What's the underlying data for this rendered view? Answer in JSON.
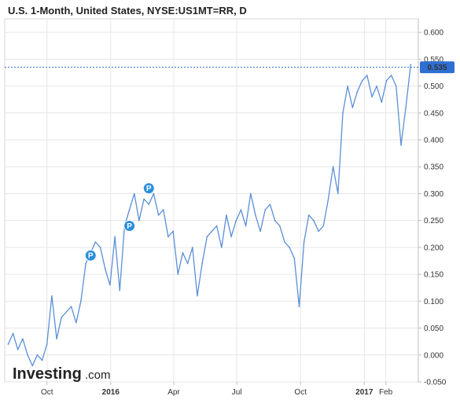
{
  "chart_data": {
    "type": "line",
    "title": "U.S. 1-Month, United States, NYSE:US1MT=RR, D",
    "xlabel": "",
    "ylabel": "",
    "ylim": [
      -0.05,
      0.625
    ],
    "y_ticks": [
      "0.600",
      "0.550",
      "0.500",
      "0.450",
      "0.400",
      "0.350",
      "0.300",
      "0.250",
      "0.200",
      "0.150",
      "0.100",
      "0.050",
      "0.000",
      "-0.050"
    ],
    "x_ticks": [
      {
        "label": "Oct",
        "x": "2015-10",
        "bold": false
      },
      {
        "label": "2016",
        "x": "2016-01",
        "bold": true
      },
      {
        "label": "Apr",
        "x": "2016-04",
        "bold": false
      },
      {
        "label": "Jul",
        "x": "2016-07",
        "bold": false
      },
      {
        "label": "Oct",
        "x": "2016-10",
        "bold": false
      },
      {
        "label": "2017",
        "x": "2017-01",
        "bold": true
      },
      {
        "label": "Feb",
        "x": "2017-02",
        "bold": false
      }
    ],
    "current_value": "0.535",
    "grid": true,
    "series": [
      {
        "color": "#5b8fd6",
        "x": [
          "2015-08-06",
          "2015-08-13",
          "2015-08-20",
          "2015-08-27",
          "2015-09-03",
          "2015-09-10",
          "2015-09-17",
          "2015-09-24",
          "2015-10-01",
          "2015-10-08",
          "2015-10-15",
          "2015-10-22",
          "2015-10-29",
          "2015-11-05",
          "2015-11-12",
          "2015-11-19",
          "2015-11-26",
          "2015-12-03",
          "2015-12-10",
          "2015-12-17",
          "2015-12-24",
          "2015-12-31",
          "2016-01-07",
          "2016-01-14",
          "2016-01-21",
          "2016-01-28",
          "2016-02-04",
          "2016-02-11",
          "2016-02-18",
          "2016-02-25",
          "2016-03-03",
          "2016-03-10",
          "2016-03-17",
          "2016-03-24",
          "2016-03-31",
          "2016-04-07",
          "2016-04-14",
          "2016-04-21",
          "2016-04-28",
          "2016-05-05",
          "2016-05-12",
          "2016-05-19",
          "2016-05-26",
          "2016-06-02",
          "2016-06-09",
          "2016-06-16",
          "2016-06-23",
          "2016-06-30",
          "2016-07-07",
          "2016-07-14",
          "2016-07-21",
          "2016-07-28",
          "2016-08-04",
          "2016-08-11",
          "2016-08-18",
          "2016-08-25",
          "2016-09-01",
          "2016-09-08",
          "2016-09-15",
          "2016-09-22",
          "2016-09-29",
          "2016-10-06",
          "2016-10-13",
          "2016-10-20",
          "2016-10-27",
          "2016-11-03",
          "2016-11-10",
          "2016-11-17",
          "2016-11-24",
          "2016-12-01",
          "2016-12-08",
          "2016-12-15",
          "2016-12-22",
          "2016-12-29",
          "2017-01-05",
          "2017-01-12",
          "2017-01-19",
          "2017-01-26",
          "2017-02-02",
          "2017-02-09",
          "2017-02-16",
          "2017-02-23",
          "2017-03-02",
          "2017-03-09"
        ],
        "values": [
          0.02,
          0.04,
          0.01,
          0.03,
          0.0,
          -0.02,
          0.0,
          -0.01,
          0.02,
          0.11,
          0.03,
          0.07,
          0.08,
          0.09,
          0.06,
          0.1,
          0.17,
          0.19,
          0.21,
          0.2,
          0.16,
          0.13,
          0.22,
          0.12,
          0.24,
          0.27,
          0.3,
          0.25,
          0.29,
          0.28,
          0.3,
          0.26,
          0.27,
          0.22,
          0.23,
          0.15,
          0.19,
          0.17,
          0.2,
          0.11,
          0.17,
          0.22,
          0.23,
          0.24,
          0.2,
          0.26,
          0.22,
          0.25,
          0.27,
          0.24,
          0.3,
          0.26,
          0.23,
          0.27,
          0.28,
          0.25,
          0.24,
          0.21,
          0.2,
          0.18,
          0.09,
          0.21,
          0.26,
          0.25,
          0.23,
          0.24,
          0.29,
          0.35,
          0.3,
          0.45,
          0.5,
          0.46,
          0.49,
          0.51,
          0.52,
          0.48,
          0.5,
          0.47,
          0.51,
          0.52,
          0.5,
          0.39,
          0.46,
          0.54
        ]
      }
    ],
    "pins": [
      {
        "x": "2015-12-03",
        "value": 0.185,
        "label": "P"
      },
      {
        "x": "2016-01-28",
        "value": 0.24,
        "label": "P"
      },
      {
        "x": "2016-02-25",
        "value": 0.31,
        "label": "P"
      }
    ]
  },
  "branding": {
    "logo_main": "Investing",
    "logo_suffix": ".com"
  },
  "colors": {
    "line": "#5b8fd6",
    "accent": "#2d6fd3",
    "grid": "#e6e6e6",
    "pin": "#2b8fdb"
  }
}
